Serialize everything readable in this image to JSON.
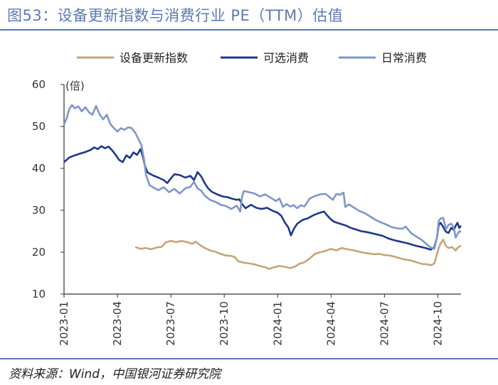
{
  "header": {
    "title": "图53：设备更新指数与消费行业 PE（TTM）估值"
  },
  "footer": {
    "source": "资料来源：Wind，中国银河证券研究院"
  },
  "colors": {
    "equipment": "#c4a57a",
    "discretionary": "#1f3888",
    "staples": "#7f97c7",
    "title": "#5b79b5",
    "axis": "#333333"
  },
  "chart_data": {
    "type": "line",
    "title": "",
    "xlabel": "",
    "ylabel": "(倍)",
    "ylim": [
      10,
      60
    ],
    "yticks": [
      10,
      20,
      30,
      40,
      50,
      60
    ],
    "x_range": [
      0,
      22.3
    ],
    "x_unit": "months since 2023-01",
    "xticks": [
      {
        "label": "2023-01",
        "x": 0
      },
      {
        "label": "2023-04",
        "x": 3
      },
      {
        "label": "2023-07",
        "x": 6
      },
      {
        "label": "2023-10",
        "x": 9
      },
      {
        "label": "2024-01",
        "x": 12
      },
      {
        "label": "2024-04",
        "x": 15
      },
      {
        "label": "2024-07",
        "x": 18
      },
      {
        "label": "2024-10",
        "x": 21
      }
    ],
    "legend": [
      "设备更新指数",
      "可选消费",
      "日常消费"
    ],
    "series": [
      {
        "name": "设备更新指数",
        "color_key": "equipment",
        "points": [
          [
            4.0,
            21.2
          ],
          [
            4.3,
            20.8
          ],
          [
            4.6,
            21.0
          ],
          [
            4.9,
            20.7
          ],
          [
            5.2,
            21.1
          ],
          [
            5.5,
            21.3
          ],
          [
            5.7,
            22.3
          ],
          [
            6.0,
            22.7
          ],
          [
            6.3,
            22.4
          ],
          [
            6.6,
            22.7
          ],
          [
            6.9,
            22.4
          ],
          [
            7.2,
            22.0
          ],
          [
            7.4,
            22.5
          ],
          [
            7.6,
            21.8
          ],
          [
            7.9,
            21.0
          ],
          [
            8.2,
            20.4
          ],
          [
            8.5,
            20.1
          ],
          [
            8.8,
            19.6
          ],
          [
            9.1,
            19.2
          ],
          [
            9.4,
            19.1
          ],
          [
            9.6,
            18.8
          ],
          [
            9.8,
            17.8
          ],
          [
            10.1,
            17.5
          ],
          [
            10.4,
            17.3
          ],
          [
            10.7,
            17.1
          ],
          [
            11.0,
            16.7
          ],
          [
            11.3,
            16.4
          ],
          [
            11.5,
            16.0
          ],
          [
            11.8,
            16.4
          ],
          [
            12.1,
            16.7
          ],
          [
            12.4,
            16.5
          ],
          [
            12.7,
            16.2
          ],
          [
            13.0,
            16.6
          ],
          [
            13.2,
            17.2
          ],
          [
            13.5,
            17.6
          ],
          [
            13.8,
            18.5
          ],
          [
            14.1,
            19.6
          ],
          [
            14.4,
            20.0
          ],
          [
            14.7,
            20.3
          ],
          [
            15.0,
            20.8
          ],
          [
            15.3,
            20.4
          ],
          [
            15.6,
            21.0
          ],
          [
            15.9,
            20.7
          ],
          [
            16.2,
            20.5
          ],
          [
            16.5,
            20.2
          ],
          [
            16.8,
            19.9
          ],
          [
            17.1,
            19.7
          ],
          [
            17.4,
            19.5
          ],
          [
            17.7,
            19.6
          ],
          [
            18.0,
            19.3
          ],
          [
            18.3,
            19.2
          ],
          [
            18.6,
            18.9
          ],
          [
            18.9,
            18.5
          ],
          [
            19.2,
            18.2
          ],
          [
            19.5,
            18.0
          ],
          [
            19.8,
            17.6
          ],
          [
            20.1,
            17.2
          ],
          [
            20.4,
            17.1
          ],
          [
            20.6,
            16.9
          ],
          [
            20.8,
            17.3
          ],
          [
            20.95,
            19.5
          ],
          [
            21.05,
            21.0
          ],
          [
            21.15,
            22.0
          ],
          [
            21.3,
            23.0
          ],
          [
            21.45,
            21.5
          ],
          [
            21.6,
            21.0
          ],
          [
            21.8,
            21.2
          ],
          [
            22.0,
            20.4
          ],
          [
            22.1,
            21.0
          ],
          [
            22.2,
            21.3
          ],
          [
            22.3,
            21.6
          ]
        ]
      },
      {
        "name": "可选消费",
        "color_key": "discretionary",
        "points": [
          [
            0.0,
            41.5
          ],
          [
            0.3,
            42.6
          ],
          [
            0.6,
            43.1
          ],
          [
            0.9,
            43.5
          ],
          [
            1.2,
            43.9
          ],
          [
            1.5,
            44.4
          ],
          [
            1.7,
            45.0
          ],
          [
            1.9,
            44.6
          ],
          [
            2.1,
            45.3
          ],
          [
            2.3,
            44.8
          ],
          [
            2.5,
            45.2
          ],
          [
            2.7,
            44.3
          ],
          [
            2.9,
            43.2
          ],
          [
            3.1,
            42.0
          ],
          [
            3.3,
            41.5
          ],
          [
            3.5,
            43.1
          ],
          [
            3.7,
            42.5
          ],
          [
            3.9,
            43.8
          ],
          [
            4.1,
            43.2
          ],
          [
            4.3,
            44.6
          ],
          [
            4.45,
            42.5
          ],
          [
            4.55,
            40.5
          ],
          [
            4.7,
            39.0
          ],
          [
            5.0,
            38.3
          ],
          [
            5.3,
            37.8
          ],
          [
            5.6,
            37.2
          ],
          [
            5.8,
            36.5
          ],
          [
            6.0,
            37.6
          ],
          [
            6.2,
            38.6
          ],
          [
            6.5,
            38.4
          ],
          [
            6.8,
            37.8
          ],
          [
            7.1,
            38.2
          ],
          [
            7.3,
            37.2
          ],
          [
            7.5,
            39.1
          ],
          [
            7.7,
            38.1
          ],
          [
            7.9,
            36.5
          ],
          [
            8.1,
            35.2
          ],
          [
            8.3,
            34.4
          ],
          [
            8.6,
            33.8
          ],
          [
            8.9,
            33.3
          ],
          [
            9.2,
            33.1
          ],
          [
            9.5,
            32.7
          ],
          [
            9.7,
            32.5
          ],
          [
            9.85,
            32.6
          ],
          [
            10.0,
            31.5
          ],
          [
            10.2,
            30.5
          ],
          [
            10.5,
            31.3
          ],
          [
            10.8,
            30.6
          ],
          [
            11.1,
            30.3
          ],
          [
            11.4,
            30.6
          ],
          [
            11.7,
            29.9
          ],
          [
            12.0,
            29.4
          ],
          [
            12.2,
            28.7
          ],
          [
            12.4,
            27.1
          ],
          [
            12.6,
            25.9
          ],
          [
            12.75,
            24.0
          ],
          [
            12.9,
            25.5
          ],
          [
            13.1,
            26.8
          ],
          [
            13.4,
            27.7
          ],
          [
            13.7,
            28.1
          ],
          [
            14.0,
            28.8
          ],
          [
            14.3,
            29.3
          ],
          [
            14.6,
            29.7
          ],
          [
            14.8,
            28.7
          ],
          [
            15.0,
            27.8
          ],
          [
            15.2,
            27.2
          ],
          [
            15.5,
            26.8
          ],
          [
            15.8,
            26.4
          ],
          [
            16.1,
            25.8
          ],
          [
            16.4,
            25.4
          ],
          [
            16.7,
            25.0
          ],
          [
            17.0,
            24.8
          ],
          [
            17.3,
            24.5
          ],
          [
            17.6,
            24.2
          ],
          [
            17.9,
            23.9
          ],
          [
            18.2,
            23.3
          ],
          [
            18.5,
            22.9
          ],
          [
            18.8,
            22.6
          ],
          [
            19.1,
            22.3
          ],
          [
            19.4,
            22.0
          ],
          [
            19.7,
            21.6
          ],
          [
            20.0,
            21.3
          ],
          [
            20.3,
            21.0
          ],
          [
            20.6,
            20.6
          ],
          [
            20.8,
            21.2
          ],
          [
            20.95,
            23.5
          ],
          [
            21.05,
            26.5
          ],
          [
            21.15,
            27.0
          ],
          [
            21.3,
            26.0
          ],
          [
            21.45,
            24.9
          ],
          [
            21.6,
            24.6
          ],
          [
            21.75,
            25.8
          ],
          [
            21.9,
            25.3
          ],
          [
            22.0,
            26.3
          ],
          [
            22.1,
            27.0
          ],
          [
            22.2,
            25.8
          ],
          [
            22.3,
            26.3
          ]
        ]
      },
      {
        "name": "日常消费",
        "color_key": "staples",
        "points": [
          [
            0.0,
            50.5
          ],
          [
            0.15,
            52.0
          ],
          [
            0.3,
            54.2
          ],
          [
            0.45,
            55.1
          ],
          [
            0.6,
            54.3
          ],
          [
            0.8,
            54.8
          ],
          [
            1.0,
            53.6
          ],
          [
            1.2,
            54.6
          ],
          [
            1.4,
            53.4
          ],
          [
            1.6,
            52.8
          ],
          [
            1.8,
            54.9
          ],
          [
            2.0,
            52.9
          ],
          [
            2.2,
            51.7
          ],
          [
            2.4,
            52.8
          ],
          [
            2.6,
            50.6
          ],
          [
            2.8,
            49.6
          ],
          [
            3.0,
            48.8
          ],
          [
            3.2,
            49.6
          ],
          [
            3.4,
            49.2
          ],
          [
            3.6,
            49.8
          ],
          [
            3.8,
            49.6
          ],
          [
            4.0,
            48.5
          ],
          [
            4.2,
            46.8
          ],
          [
            4.35,
            45.6
          ],
          [
            4.5,
            42.0
          ],
          [
            4.6,
            38.5
          ],
          [
            4.8,
            36.0
          ],
          [
            5.0,
            35.5
          ],
          [
            5.3,
            34.8
          ],
          [
            5.6,
            35.5
          ],
          [
            5.9,
            34.3
          ],
          [
            6.2,
            35.1
          ],
          [
            6.5,
            34.0
          ],
          [
            6.8,
            35.2
          ],
          [
            7.1,
            35.6
          ],
          [
            7.3,
            36.8
          ],
          [
            7.5,
            35.2
          ],
          [
            7.7,
            34.7
          ],
          [
            7.9,
            33.5
          ],
          [
            8.2,
            32.5
          ],
          [
            8.5,
            32.0
          ],
          [
            8.8,
            31.3
          ],
          [
            9.1,
            31.0
          ],
          [
            9.4,
            30.3
          ],
          [
            9.7,
            31.1
          ],
          [
            9.9,
            29.7
          ],
          [
            10.0,
            33.2
          ],
          [
            10.1,
            34.6
          ],
          [
            10.4,
            34.3
          ],
          [
            10.7,
            34.0
          ],
          [
            11.0,
            33.3
          ],
          [
            11.3,
            33.8
          ],
          [
            11.6,
            33.0
          ],
          [
            11.9,
            32.2
          ],
          [
            12.1,
            32.8
          ],
          [
            12.3,
            30.8
          ],
          [
            12.5,
            31.5
          ],
          [
            12.7,
            30.9
          ],
          [
            12.9,
            31.2
          ],
          [
            13.1,
            30.5
          ],
          [
            13.3,
            31.2
          ],
          [
            13.5,
            30.9
          ],
          [
            13.8,
            32.8
          ],
          [
            14.1,
            33.4
          ],
          [
            14.4,
            33.8
          ],
          [
            14.7,
            33.9
          ],
          [
            14.9,
            33.2
          ],
          [
            15.1,
            32.5
          ],
          [
            15.3,
            33.9
          ],
          [
            15.5,
            33.7
          ],
          [
            15.7,
            34.2
          ],
          [
            15.8,
            30.8
          ],
          [
            16.0,
            31.4
          ],
          [
            16.3,
            30.6
          ],
          [
            16.6,
            29.8
          ],
          [
            16.9,
            29.3
          ],
          [
            17.2,
            28.5
          ],
          [
            17.5,
            27.7
          ],
          [
            17.8,
            27.1
          ],
          [
            18.1,
            26.6
          ],
          [
            18.4,
            26.0
          ],
          [
            18.7,
            25.7
          ],
          [
            19.0,
            25.6
          ],
          [
            19.2,
            26.1
          ],
          [
            19.5,
            24.5
          ],
          [
            19.8,
            23.7
          ],
          [
            20.1,
            22.9
          ],
          [
            20.4,
            21.8
          ],
          [
            20.6,
            21.1
          ],
          [
            20.8,
            20.8
          ],
          [
            20.95,
            23.5
          ],
          [
            21.05,
            27.5
          ],
          [
            21.15,
            28.0
          ],
          [
            21.3,
            28.2
          ],
          [
            21.45,
            25.5
          ],
          [
            21.6,
            26.5
          ],
          [
            21.75,
            26.8
          ],
          [
            21.9,
            25.8
          ],
          [
            22.0,
            23.5
          ],
          [
            22.1,
            24.3
          ],
          [
            22.2,
            25.0
          ],
          [
            22.3,
            24.8
          ]
        ]
      }
    ]
  }
}
